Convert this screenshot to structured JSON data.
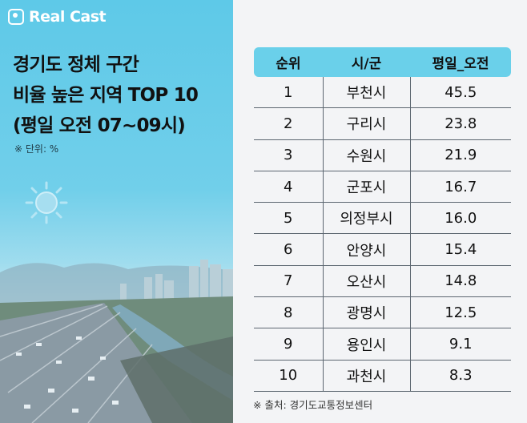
{
  "brand": {
    "logo_text": "Real Cast"
  },
  "title_lines": [
    "경기도 정체 구간",
    "비율 높은 지역 TOP 10",
    "(평일 오전 07~09시)"
  ],
  "unit_note": "※ 단위: %",
  "source_note": "※ 출처: 경기도교통정보센터",
  "colors": {
    "header_bg": "#6ad0ea",
    "panel_sky": "#5ec9e8",
    "brand": "#ffffff"
  },
  "icons": {
    "logo": "camera-logo-icon",
    "decoration": "sun-icon"
  },
  "chart_data": {
    "type": "table",
    "columns": [
      "순위",
      "시/군",
      "평일_오전"
    ],
    "rows": [
      [
        "1",
        "부천시",
        "45.5"
      ],
      [
        "2",
        "구리시",
        "23.8"
      ],
      [
        "3",
        "수원시",
        "21.9"
      ],
      [
        "4",
        "군포시",
        "16.7"
      ],
      [
        "5",
        "의정부시",
        "16.0"
      ],
      [
        "6",
        "안양시",
        "15.4"
      ],
      [
        "7",
        "오산시",
        "14.8"
      ],
      [
        "8",
        "광명시",
        "12.5"
      ],
      [
        "9",
        "용인시",
        "9.1"
      ],
      [
        "10",
        "과천시",
        "8.3"
      ]
    ]
  }
}
